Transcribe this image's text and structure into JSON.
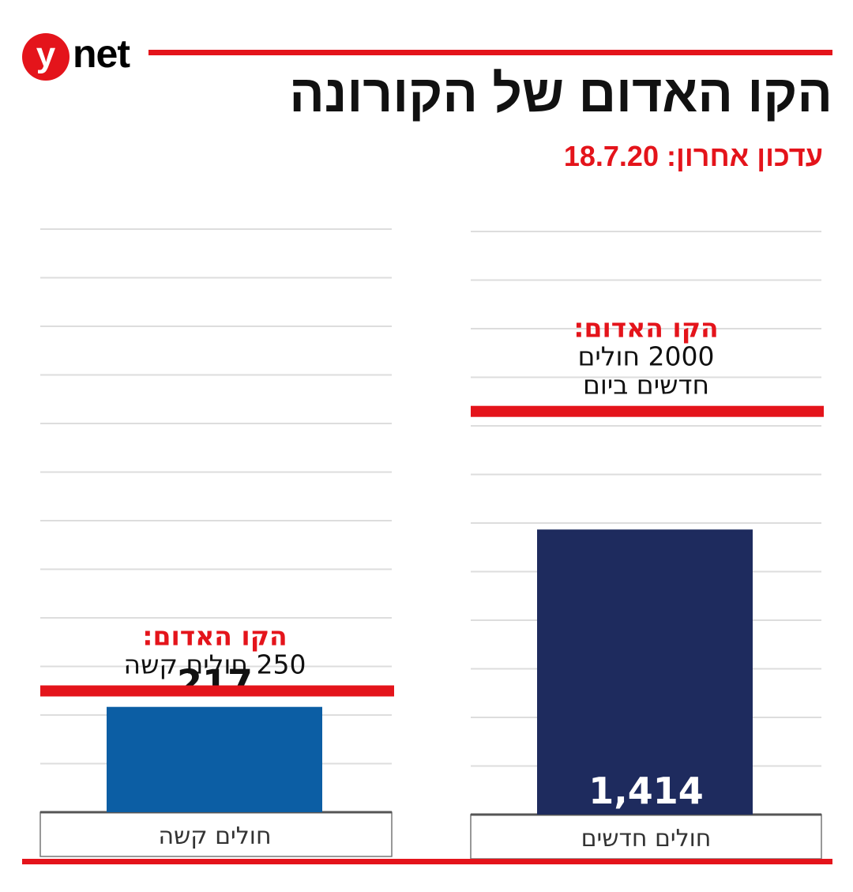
{
  "logo": {
    "letter": "y",
    "text": "net"
  },
  "title": "הקו האדום של הקורונה",
  "subtitle": "עדכון אחרון: 18.7.20",
  "colors": {
    "red": "#e4141b",
    "navy": "#1e2b5e",
    "blue": "#0c5ea4",
    "grid": "#dddddd"
  },
  "chart_data": [
    {
      "type": "bar",
      "categories": [
        "חולים חדשים"
      ],
      "values": [
        1414
      ],
      "value_labels": [
        "1,414"
      ],
      "bar_color": "#1e2b5e",
      "value_label_position": "inside-bottom",
      "ylim": [
        0,
        2900
      ],
      "grid": true,
      "reference_line": {
        "value": 2000,
        "color": "#e4141b",
        "label_title": "הקו האדום:",
        "label_lines": [
          "2000 חולים",
          "חדשים ביום"
        ]
      }
    },
    {
      "type": "bar",
      "categories": [
        "חולים קשה"
      ],
      "values": [
        217
      ],
      "value_labels": [
        "217"
      ],
      "bar_color": "#0c5ea4",
      "value_label_position": "above",
      "ylim": [
        0,
        1200
      ],
      "grid": true,
      "reference_line": {
        "value": 250,
        "color": "#e4141b",
        "label_title": "הקו האדום:",
        "label_lines": [
          "250 חולים קשה"
        ]
      }
    }
  ]
}
